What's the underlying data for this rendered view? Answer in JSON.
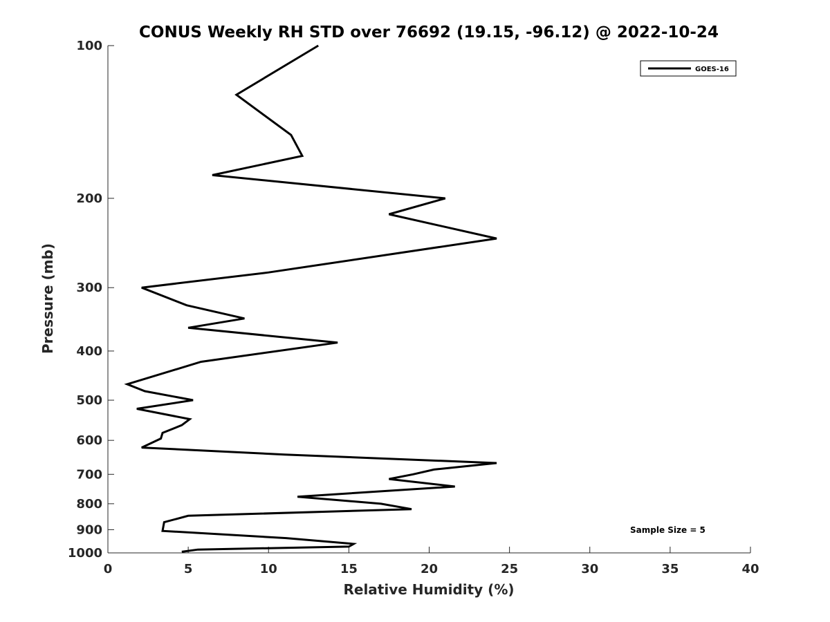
{
  "chart_data": {
    "type": "line",
    "title": "CONUS Weekly RH STD over 76692 (19.15, -96.12) @ 2022-10-24",
    "xlabel": "Relative Humidity (%)",
    "ylabel": "Pressure (mb)",
    "xlim": [
      0,
      40
    ],
    "ylim": [
      100,
      1000
    ],
    "y_scale": "log",
    "y_reversed": true,
    "x_ticks": [
      0,
      5,
      10,
      15,
      20,
      25,
      30,
      35,
      40
    ],
    "y_ticks": [
      100,
      200,
      300,
      400,
      500,
      600,
      700,
      800,
      900,
      1000
    ],
    "grid": false,
    "legend_position": "top-right",
    "annotation": "Sample Size = 5",
    "series": [
      {
        "name": "GOES-16",
        "color": "#000000",
        "points": [
          [
            13.1,
            100
          ],
          [
            8.0,
            125
          ],
          [
            11.4,
            150
          ],
          [
            12.1,
            165
          ],
          [
            6.5,
            180
          ],
          [
            21.0,
            200
          ],
          [
            17.5,
            215
          ],
          [
            24.2,
            240
          ],
          [
            10.0,
            280
          ],
          [
            2.1,
            300
          ],
          [
            4.9,
            325
          ],
          [
            8.5,
            345
          ],
          [
            5.0,
            360
          ],
          [
            14.3,
            385
          ],
          [
            5.8,
            420
          ],
          [
            1.2,
            465
          ],
          [
            2.3,
            480
          ],
          [
            5.3,
            500
          ],
          [
            1.8,
            520
          ],
          [
            5.1,
            545
          ],
          [
            4.6,
            560
          ],
          [
            3.4,
            580
          ],
          [
            3.3,
            595
          ],
          [
            2.1,
            620
          ],
          [
            11.0,
            640
          ],
          [
            24.2,
            665
          ],
          [
            20.3,
            685
          ],
          [
            19.0,
            700
          ],
          [
            17.5,
            715
          ],
          [
            21.6,
            740
          ],
          [
            11.8,
            775
          ],
          [
            17.0,
            800
          ],
          [
            18.9,
            820
          ],
          [
            5.0,
            845
          ],
          [
            3.5,
            870
          ],
          [
            3.4,
            905
          ],
          [
            11.1,
            935
          ],
          [
            15.3,
            960
          ],
          [
            15.0,
            972
          ],
          [
            5.6,
            985
          ],
          [
            4.6,
            995
          ]
        ]
      }
    ]
  }
}
